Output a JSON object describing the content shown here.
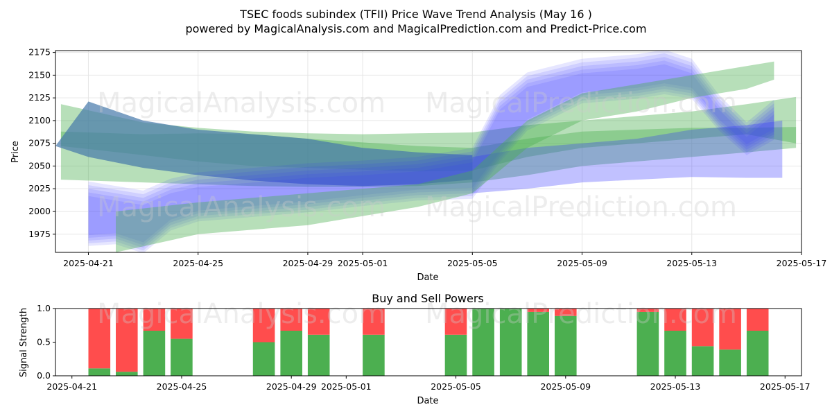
{
  "figure": {
    "title_line1": "TSEC foods subindex (TFII) Price Wave Trend Analysis (May 16 )",
    "title_line2": "powered by MagicalAnalysis.com and MagicalPrediction.com and Predict-Price.com",
    "watermarks": [
      "MagicalAnalysis.com",
      "MagicalPrediction.com"
    ]
  },
  "chart_data": [
    {
      "type": "area",
      "title": "",
      "xlabel": "Date",
      "ylabel": "Price",
      "ylim": [
        1955,
        2177
      ],
      "yticks": [
        1975,
        2000,
        2025,
        2050,
        2075,
        2100,
        2125,
        2150,
        2175
      ],
      "xlim": [
        "2025-04-19.8",
        "2025-05-17.0"
      ],
      "xticks": [
        "2025-04-21",
        "2025-04-25",
        "2025-04-29",
        "2025-05-01",
        "2025-05-05",
        "2025-05-09",
        "2025-05-13",
        "2025-05-17"
      ],
      "grid": true,
      "colors": {
        "green": "#4caf50",
        "blue": "#3333ff",
        "steel": "#4477aa"
      },
      "series": [
        {
          "color": "green",
          "style": "band",
          "x": [
            "2025-04-20",
            "2025-04-23",
            "2025-04-25",
            "2025-04-27",
            "2025-04-29",
            "2025-05-01",
            "2025-05-03",
            "2025-05-05",
            "2025-05-07",
            "2025-05-09",
            "2025-05-11",
            "2025-05-13",
            "2025-05-15",
            "2025-05-16.8"
          ],
          "upper": [
            2088,
            2085,
            2086,
            2085,
            2080,
            2076,
            2072,
            2070,
            2080,
            2088,
            2090,
            2092,
            2092,
            2093
          ],
          "lower": [
            2035,
            2032,
            2030,
            2028,
            2027,
            2027,
            2028,
            2032,
            2040,
            2050,
            2055,
            2060,
            2065,
            2070
          ]
        },
        {
          "color": "green",
          "style": "band",
          "x": [
            "2025-04-20",
            "2025-04-23",
            "2025-04-25",
            "2025-04-27",
            "2025-04-29",
            "2025-05-01",
            "2025-05-03",
            "2025-05-05",
            "2025-05-07",
            "2025-05-09",
            "2025-05-11",
            "2025-05-13",
            "2025-05-15",
            "2025-05-16.8"
          ],
          "upper": [
            2118,
            2098,
            2092,
            2088,
            2086,
            2085,
            2086,
            2087,
            2095,
            2100,
            2105,
            2110,
            2118,
            2126
          ],
          "lower": [
            2072,
            2062,
            2055,
            2050,
            2048,
            2046,
            2044,
            2045,
            2060,
            2070,
            2075,
            2080,
            2085,
            2075
          ]
        },
        {
          "color": "steel",
          "style": "band",
          "x": [
            "2025-04-19.8",
            "2025-04-21",
            "2025-04-23",
            "2025-04-25",
            "2025-04-27",
            "2025-04-29",
            "2025-05-01",
            "2025-05-03",
            "2025-05-05"
          ],
          "upper": [
            2072,
            2121,
            2100,
            2090,
            2085,
            2080,
            2070,
            2065,
            2062
          ],
          "lower": [
            2072,
            2060,
            2048,
            2040,
            2034,
            2030,
            2028,
            2030,
            2035
          ]
        },
        {
          "color": "blue",
          "style": "wave",
          "x": [
            "2025-04-21",
            "2025-04-22",
            "2025-04-23",
            "2025-04-24",
            "2025-04-25",
            "2025-04-27",
            "2025-04-29",
            "2025-05-01",
            "2025-05-03",
            "2025-05-05",
            "2025-05-06",
            "2025-05-07",
            "2025-05-09",
            "2025-05-11",
            "2025-05-12",
            "2025-05-13",
            "2025-05-14",
            "2025-05-15",
            "2025-05-16"
          ],
          "upper": [
            2025,
            2020,
            2015,
            2028,
            2035,
            2040,
            2045,
            2048,
            2052,
            2062,
            2120,
            2145,
            2160,
            2165,
            2170,
            2160,
            2120,
            2090,
            2115
          ],
          "lower": [
            1968,
            1970,
            1960,
            1985,
            1995,
            2000,
            2005,
            2012,
            2018,
            2020,
            2060,
            2095,
            2125,
            2130,
            2135,
            2130,
            2095,
            2068,
            2085
          ]
        },
        {
          "color": "blue",
          "style": "band",
          "x": [
            "2025-05-05",
            "2025-05-07",
            "2025-05-09",
            "2025-05-11",
            "2025-05-13",
            "2025-05-15",
            "2025-05-16.3"
          ],
          "upper": [
            2060,
            2070,
            2075,
            2080,
            2090,
            2095,
            2100
          ],
          "lower": [
            2020,
            2025,
            2032,
            2035,
            2038,
            2037,
            2037
          ]
        },
        {
          "color": "green",
          "style": "band",
          "x": [
            "2025-04-22",
            "2025-04-25",
            "2025-04-29",
            "2025-05-03",
            "2025-05-05",
            "2025-05-07",
            "2025-05-09",
            "2025-05-11",
            "2025-05-13",
            "2025-05-15",
            "2025-05-16"
          ],
          "upper": [
            2000,
            2010,
            2020,
            2030,
            2045,
            2100,
            2130,
            2140,
            2150,
            2160,
            2165
          ],
          "lower": [
            1955,
            1975,
            1985,
            2005,
            2020,
            2070,
            2100,
            2110,
            2125,
            2135,
            2145
          ]
        }
      ]
    },
    {
      "type": "bar",
      "title": "Buy and Sell Powers",
      "xlabel": "Date",
      "ylabel": "Signal Strength",
      "ylim": [
        0,
        1.0
      ],
      "yticks": [
        0.0,
        0.5,
        1.0
      ],
      "xlim": [
        "2025-04-20.4",
        "2025-05-17.6"
      ],
      "xticks": [
        "2025-04-21",
        "2025-04-25",
        "2025-04-29",
        "2025-05-01",
        "2025-05-05",
        "2025-05-09",
        "2025-05-13",
        "2025-05-17"
      ],
      "stacked": true,
      "colors": {
        "buy": "#4caf50",
        "sell": "#ff4d4d"
      },
      "dates": [
        "2025-04-22",
        "2025-04-23",
        "2025-04-24",
        "2025-04-25",
        "2025-04-28",
        "2025-04-29",
        "2025-04-30",
        "2025-05-02",
        "2025-05-05",
        "2025-05-06",
        "2025-05-07",
        "2025-05-08",
        "2025-05-09",
        "2025-05-12",
        "2025-05-13",
        "2025-05-14",
        "2025-05-15",
        "2025-05-16"
      ],
      "buy": [
        0.11,
        0.06,
        0.67,
        0.55,
        0.5,
        0.67,
        0.61,
        0.61,
        0.61,
        1.0,
        1.0,
        0.95,
        0.89,
        0.95,
        0.67,
        0.44,
        0.39,
        0.67
      ],
      "sell": [
        0.89,
        0.94,
        0.33,
        0.45,
        0.5,
        0.33,
        0.39,
        0.39,
        0.39,
        0.0,
        0.0,
        0.05,
        0.11,
        0.05,
        0.33,
        0.56,
        0.61,
        0.33
      ]
    }
  ]
}
